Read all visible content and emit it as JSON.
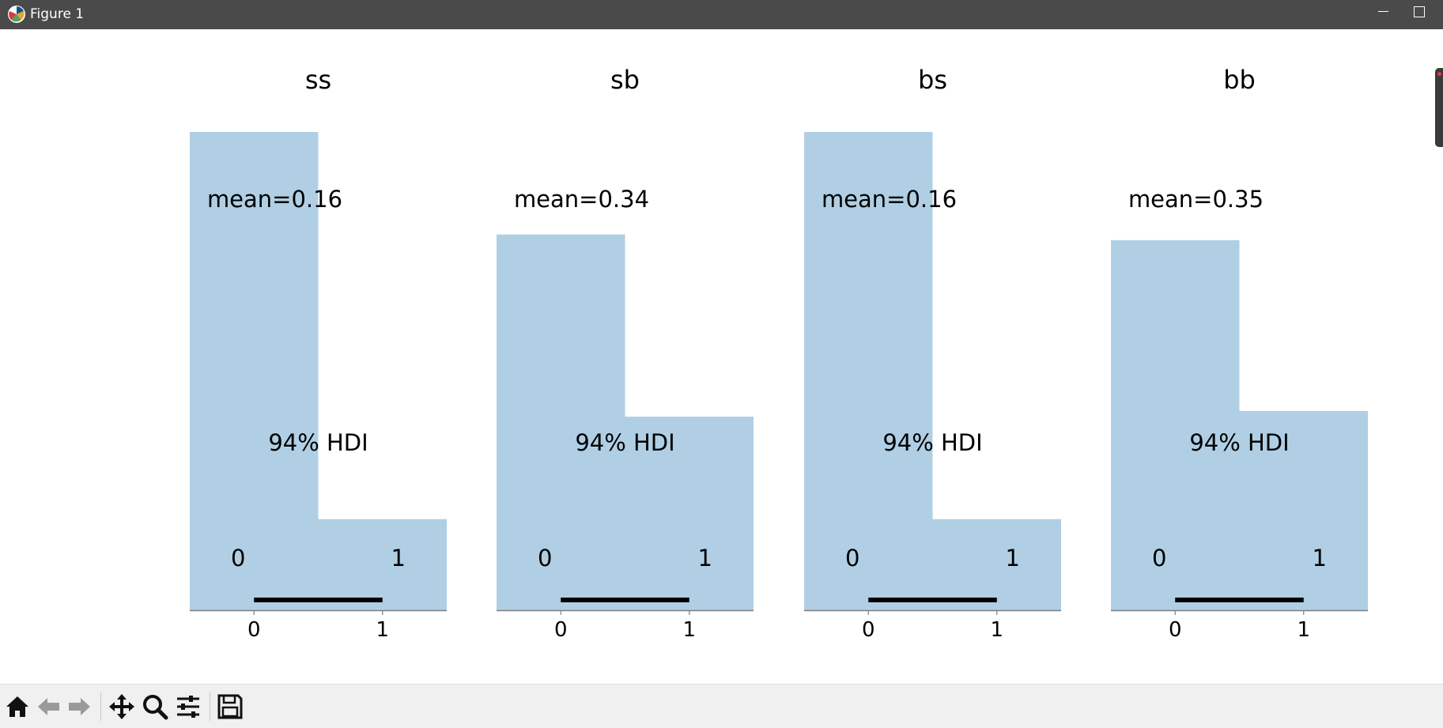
{
  "window": {
    "title": "Figure 1"
  },
  "toolbar": {
    "buttons": [
      {
        "name": "home-icon"
      },
      {
        "name": "back-arrow-icon"
      },
      {
        "name": "forward-arrow-icon"
      },
      {
        "name": "pan-icon"
      },
      {
        "name": "zoom-icon"
      },
      {
        "name": "configure-subplots-icon"
      },
      {
        "name": "save-icon"
      }
    ]
  },
  "colors": {
    "bar": "#b0cfe4",
    "hdi_line": "#000000",
    "axis_line": "#7f7f7f",
    "titlebar": "#4a4a4a",
    "toolbar": "#f0f0f0"
  },
  "chart_data": [
    {
      "type": "bar",
      "title": "ss",
      "categories": [
        "0",
        "1"
      ],
      "x": [
        0,
        1
      ],
      "values": [
        0.84,
        0.16
      ],
      "mean_label": "mean=0.16",
      "hdi_label": "94% HDI",
      "hdi": [
        0,
        1
      ],
      "hdi_tick_labels": [
        "0",
        "1"
      ],
      "xticks": [
        "0",
        "1"
      ],
      "xlim": [
        -0.5,
        1.5
      ],
      "ylim": [
        0,
        0.84
      ]
    },
    {
      "type": "bar",
      "title": "sb",
      "categories": [
        "0",
        "1"
      ],
      "x": [
        0,
        1
      ],
      "values": [
        0.66,
        0.34
      ],
      "mean_label": "mean=0.34",
      "hdi_label": "94% HDI",
      "hdi": [
        0,
        1
      ],
      "hdi_tick_labels": [
        "0",
        "1"
      ],
      "xticks": [
        "0",
        "1"
      ],
      "xlim": [
        -0.5,
        1.5
      ],
      "ylim": [
        0,
        0.84
      ]
    },
    {
      "type": "bar",
      "title": "bs",
      "categories": [
        "0",
        "1"
      ],
      "x": [
        0,
        1
      ],
      "values": [
        0.84,
        0.16
      ],
      "mean_label": "mean=0.16",
      "hdi_label": "94% HDI",
      "hdi": [
        0,
        1
      ],
      "hdi_tick_labels": [
        "0",
        "1"
      ],
      "xticks": [
        "0",
        "1"
      ],
      "xlim": [
        -0.5,
        1.5
      ],
      "ylim": [
        0,
        0.84
      ]
    },
    {
      "type": "bar",
      "title": "bb",
      "categories": [
        "0",
        "1"
      ],
      "x": [
        0,
        1
      ],
      "values": [
        0.65,
        0.35
      ],
      "mean_label": "mean=0.35",
      "hdi_label": "94% HDI",
      "hdi": [
        0,
        1
      ],
      "hdi_tick_labels": [
        "0",
        "1"
      ],
      "xticks": [
        "0",
        "1"
      ],
      "xlim": [
        -0.5,
        1.5
      ],
      "ylim": [
        0,
        0.84
      ]
    }
  ]
}
